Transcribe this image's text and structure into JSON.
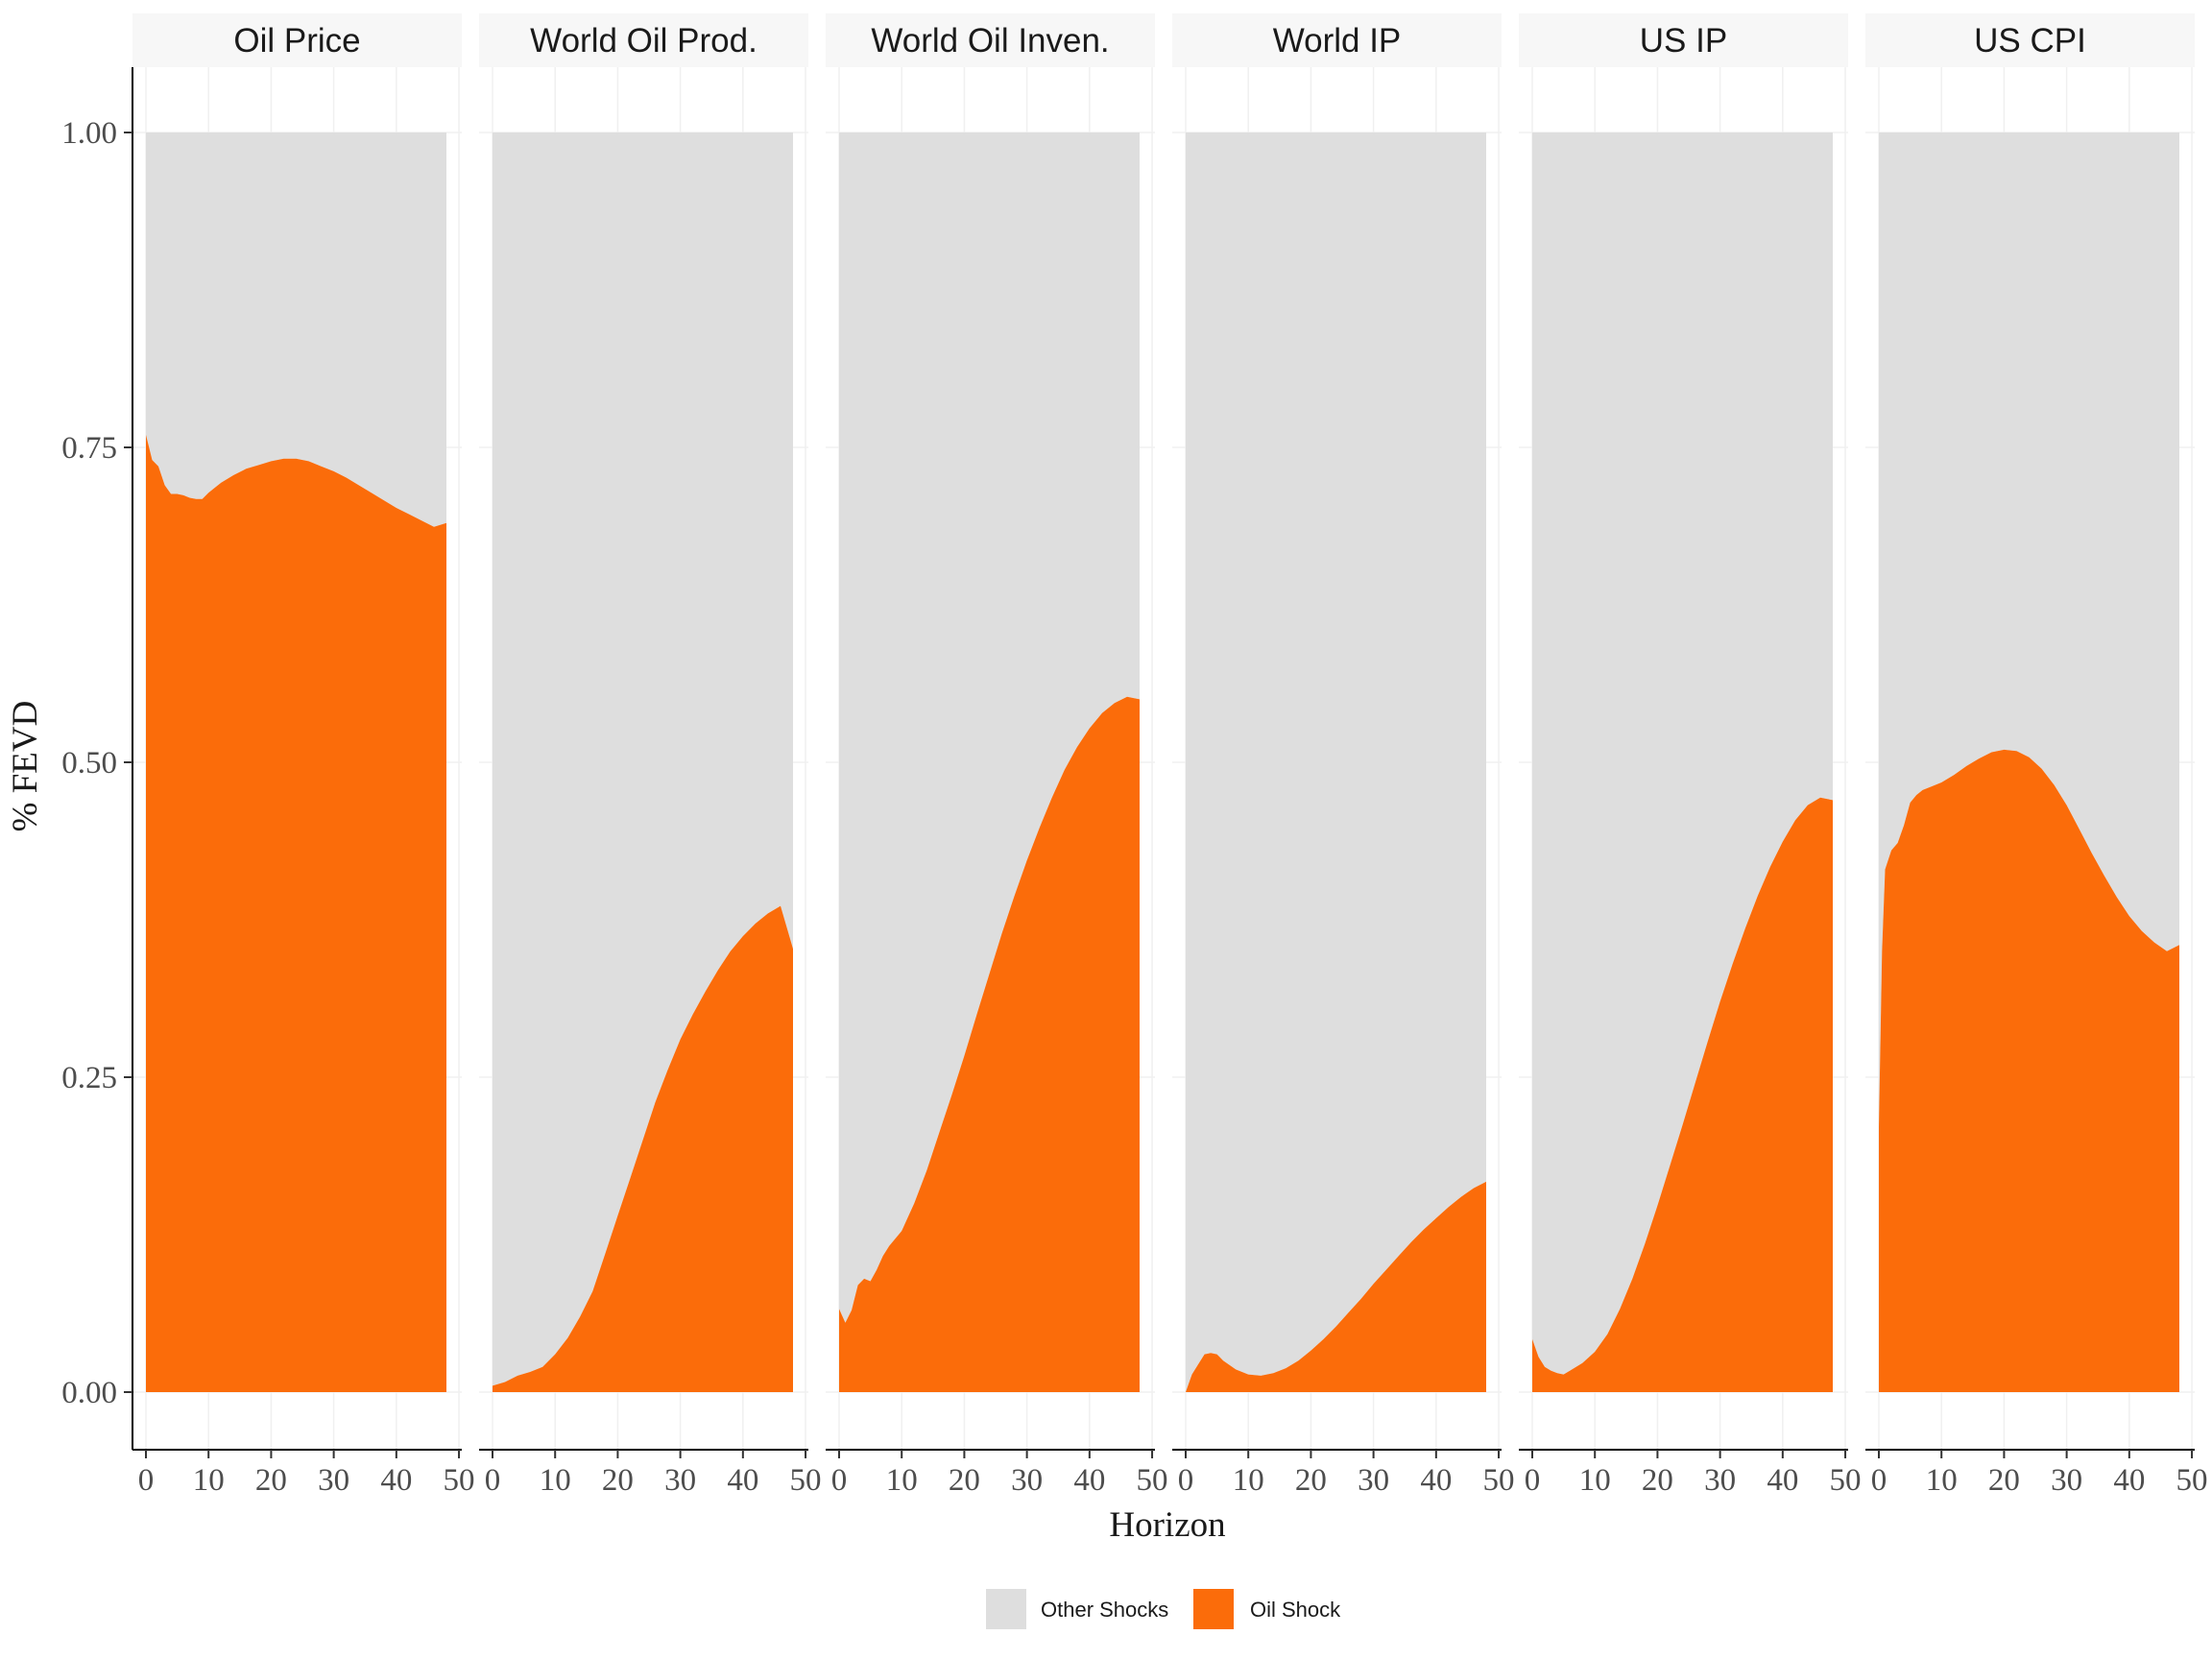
{
  "chart_data": {
    "type": "area",
    "stacked": true,
    "xlabel": "Horizon",
    "ylabel": "% FEVD",
    "xlim": [
      0,
      50
    ],
    "ylim": [
      0,
      1
    ],
    "x_ticks": [
      "0",
      "10",
      "20",
      "30",
      "40",
      "50"
    ],
    "y_ticks": [
      "0.00",
      "0.25",
      "0.50",
      "0.75",
      "1.00"
    ],
    "grid": true,
    "legend_position": "bottom",
    "legend": [
      {
        "name": "Other Shocks",
        "color": "#dedede"
      },
      {
        "name": "Oil Shock",
        "color": "#fb6c0a"
      }
    ],
    "panels": [
      {
        "title": "Oil Price",
        "x": [
          0,
          1,
          2,
          3,
          4,
          5,
          6,
          7,
          8,
          9,
          10,
          12,
          14,
          16,
          18,
          20,
          22,
          24,
          26,
          28,
          30,
          32,
          34,
          36,
          38,
          40,
          42,
          44,
          46,
          48
        ],
        "values": [
          0.76,
          0.74,
          0.735,
          0.72,
          0.713,
          0.713,
          0.712,
          0.71,
          0.709,
          0.709,
          0.714,
          0.722,
          0.728,
          0.733,
          0.736,
          0.739,
          0.741,
          0.741,
          0.739,
          0.735,
          0.731,
          0.726,
          0.72,
          0.714,
          0.708,
          0.702,
          0.697,
          0.692,
          0.687,
          0.69
        ]
      },
      {
        "title": "World Oil Prod.",
        "x": [
          0,
          2,
          4,
          6,
          8,
          10,
          12,
          14,
          16,
          18,
          20,
          22,
          24,
          26,
          28,
          30,
          32,
          34,
          36,
          38,
          40,
          42,
          44,
          46,
          48
        ],
        "values": [
          0.005,
          0.008,
          0.013,
          0.016,
          0.02,
          0.03,
          0.043,
          0.06,
          0.08,
          0.11,
          0.14,
          0.17,
          0.2,
          0.23,
          0.256,
          0.28,
          0.3,
          0.318,
          0.335,
          0.35,
          0.362,
          0.372,
          0.38,
          0.386,
          0.352
        ]
      },
      {
        "title": "World Oil Inven.",
        "x": [
          0,
          1,
          2,
          3,
          4,
          5,
          6,
          7,
          8,
          10,
          12,
          14,
          16,
          18,
          20,
          22,
          24,
          26,
          28,
          30,
          32,
          34,
          36,
          38,
          40,
          42,
          44,
          46,
          48
        ],
        "values": [
          0.066,
          0.055,
          0.065,
          0.085,
          0.09,
          0.088,
          0.097,
          0.108,
          0.116,
          0.128,
          0.15,
          0.176,
          0.206,
          0.236,
          0.267,
          0.3,
          0.332,
          0.364,
          0.394,
          0.422,
          0.448,
          0.472,
          0.494,
          0.512,
          0.527,
          0.539,
          0.547,
          0.552,
          0.55
        ]
      },
      {
        "title": "World IP",
        "x": [
          0,
          1,
          2,
          3,
          4,
          5,
          6,
          8,
          10,
          12,
          14,
          16,
          18,
          20,
          22,
          24,
          26,
          28,
          30,
          32,
          34,
          36,
          38,
          40,
          42,
          44,
          46,
          48
        ],
        "values": [
          0.0,
          0.014,
          0.022,
          0.03,
          0.031,
          0.03,
          0.025,
          0.018,
          0.014,
          0.013,
          0.015,
          0.019,
          0.025,
          0.033,
          0.042,
          0.052,
          0.063,
          0.074,
          0.086,
          0.097,
          0.108,
          0.119,
          0.129,
          0.138,
          0.147,
          0.155,
          0.162,
          0.167
        ]
      },
      {
        "title": "US IP",
        "x": [
          0,
          1,
          2,
          3,
          4,
          5,
          6,
          8,
          10,
          12,
          14,
          16,
          18,
          20,
          22,
          24,
          26,
          28,
          30,
          32,
          34,
          36,
          38,
          40,
          42,
          44,
          46,
          48
        ],
        "values": [
          0.042,
          0.028,
          0.02,
          0.017,
          0.015,
          0.014,
          0.017,
          0.023,
          0.032,
          0.046,
          0.066,
          0.09,
          0.118,
          0.148,
          0.18,
          0.212,
          0.245,
          0.278,
          0.31,
          0.34,
          0.368,
          0.394,
          0.417,
          0.437,
          0.454,
          0.466,
          0.472,
          0.47
        ]
      },
      {
        "title": "US CPI",
        "x": [
          0,
          0.5,
          1,
          2,
          3,
          4,
          5,
          6,
          7,
          8,
          9,
          10,
          12,
          14,
          16,
          18,
          20,
          22,
          24,
          26,
          28,
          30,
          32,
          34,
          36,
          38,
          40,
          42,
          44,
          46,
          48
        ],
        "values": [
          0.21,
          0.35,
          0.415,
          0.43,
          0.436,
          0.45,
          0.468,
          0.474,
          0.478,
          0.48,
          0.482,
          0.484,
          0.49,
          0.497,
          0.503,
          0.508,
          0.51,
          0.509,
          0.504,
          0.495,
          0.482,
          0.466,
          0.447,
          0.428,
          0.41,
          0.393,
          0.378,
          0.366,
          0.357,
          0.35,
          0.355
        ]
      }
    ]
  }
}
